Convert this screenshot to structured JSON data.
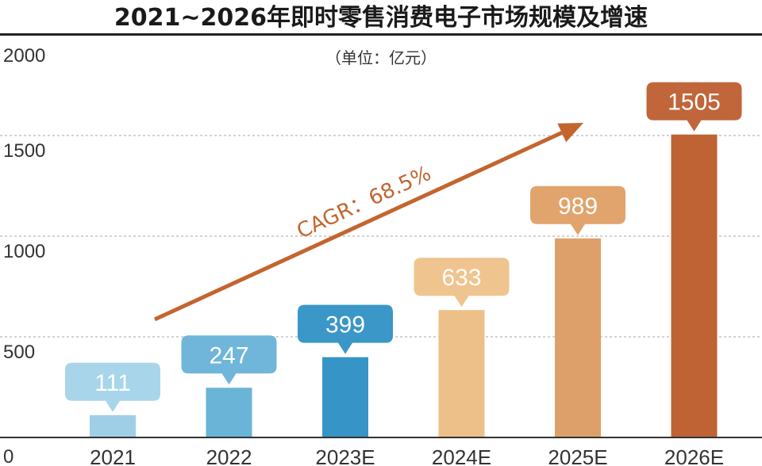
{
  "chart_data": {
    "type": "bar",
    "title": "2021~2026年即时零售消费电子市场规模及增速",
    "subtitle": "（单位：亿元）",
    "categories": [
      "2021",
      "2022",
      "2023E",
      "2024E",
      "2025E",
      "2026E"
    ],
    "values": [
      111,
      247,
      399,
      633,
      989,
      1505
    ],
    "ylim": [
      0,
      2000
    ],
    "yticks": [
      0,
      500,
      1000,
      1500,
      2000
    ],
    "grid": true,
    "legend": "none",
    "annotation": "CAGR：68.5%",
    "colors": {
      "bars": [
        "#9fcfe6",
        "#6ab4d8",
        "#3695c6",
        "#edc08a",
        "#dea06a",
        "#bf6334"
      ],
      "callouts": [
        "#a9d5ea",
        "#6fb6da",
        "#3a97c8",
        "#efc48e",
        "#e1a46d",
        "#c0663a"
      ],
      "cagr": "#c3652f",
      "grid": "#d2d2d2",
      "title_bar": "#222222"
    }
  }
}
